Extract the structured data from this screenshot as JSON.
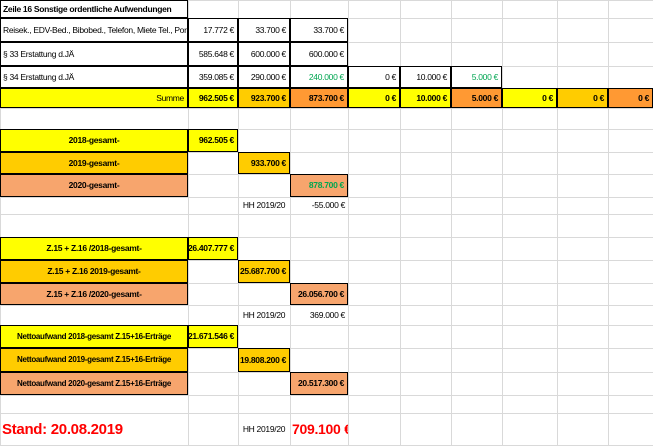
{
  "colors": {
    "yellow": "#ffff00",
    "gold": "#ffcc00",
    "orange": "#ff9933",
    "peach": "#f7a56d",
    "green": "#00a651",
    "red": "#ff0000",
    "black": "#000000"
  },
  "sheet": {
    "title": "Zeile 16 Sonstige ordentliche Aufwendungen",
    "rows": [
      {
        "label": "Reisek., EDV-Bed., Bibobed., Telefon, Miete Tel., Por",
        "values": [
          "17.772 €",
          "33.700 €",
          "33.700 €"
        ]
      },
      {
        "label": "§ 33 Erstattung d.JÄ",
        "values": [
          "585.648 €",
          "600.000 €",
          "600.000 €"
        ]
      },
      {
        "label": "§ 34 Erstattung d.JÄ",
        "values": [
          "359.085 €",
          "290.000 €",
          "240.000 €",
          "0 €",
          "10.000 €",
          "5.000 €"
        ]
      }
    ],
    "summe": {
      "label": "Summe",
      "values": [
        "962.505 €",
        "923.700 €",
        "873.700 €",
        "0 €",
        "10.000 €",
        "5.000 €",
        "0 €",
        "0 €",
        "0 €"
      ]
    },
    "totals": [
      {
        "label": "2018-gesamt-",
        "value": "962.505 €"
      },
      {
        "label": "2019-gesamt-",
        "value": "933.700 €"
      },
      {
        "label": "2020-gesamt-",
        "value": "878.700 €"
      }
    ],
    "hh_label": "HH 2019/20",
    "diff1": "-55.000 €",
    "z_totals": [
      {
        "label": "Z.15 + Z.16 /2018-gesamt-",
        "value": "26.407.777 €"
      },
      {
        "label": "Z.15 + Z.16 2019-gesamt-",
        "value": "25.687.700 €"
      },
      {
        "label": "Z.15 + Z.16 /2020-gesamt-",
        "value": "26.056.700 €"
      }
    ],
    "diff2": "369.000 €",
    "netto": [
      {
        "label": "Nettoaufwand 2018-gesamt Z.15+16-Erträge",
        "value": "21.671.546 €"
      },
      {
        "label": "Nettoaufwand 2019-gesamt Z.15+16-Erträge",
        "value": "19.808.200 €"
      },
      {
        "label": "Nettoaufwand 2020-gesamt Z.15+16-Erträge",
        "value": "20.517.300 €"
      }
    ],
    "stand": "Stand: 20.08.2019",
    "diff3": "709.100 €"
  }
}
